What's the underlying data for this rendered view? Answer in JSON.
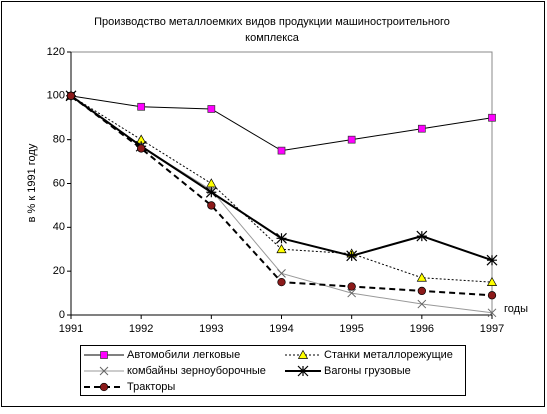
{
  "chart_data": {
    "type": "line",
    "title": [
      "Производство металлоемких видов продукции машиностроительного",
      "комплекса"
    ],
    "y_label": "в % к 1991 году",
    "x_label": "годы",
    "x": [
      1991,
      1992,
      1993,
      1994,
      1995,
      1996,
      1997
    ],
    "xlim": [
      1991,
      1997
    ],
    "xticks": [
      1991,
      1992,
      1993,
      1994,
      1995,
      1996,
      1997
    ],
    "ylim": [
      0,
      120
    ],
    "yticks": [
      0,
      20,
      40,
      60,
      80,
      100,
      120
    ],
    "grid": false,
    "series": [
      {
        "name": "Автомобили легковые",
        "color": "#000000",
        "marker": "square",
        "marker_color": "#ff00ff",
        "dash": "none",
        "line_width": 1,
        "values": [
          100,
          95,
          94,
          75,
          80,
          85,
          90
        ]
      },
      {
        "name": "Станки металлорежущие",
        "color": "#000000",
        "marker": "triangle",
        "marker_color": "#ffff00",
        "dash": "2,2",
        "line_width": 1,
        "values": [
          100,
          80,
          60,
          30,
          28,
          17,
          15
        ]
      },
      {
        "name": "комбайны зерноуборочные",
        "color": "#999999",
        "marker": "x",
        "marker_color": "#666666",
        "dash": "none",
        "line_width": 1,
        "values": [
          100,
          77,
          57,
          19,
          10,
          5,
          1
        ]
      },
      {
        "name": "Вагоны грузовые",
        "color": "#000000",
        "marker": "star",
        "marker_color": "#000000",
        "dash": "none",
        "line_width": 2,
        "values": [
          100,
          77,
          56,
          35,
          27,
          36,
          25
        ]
      },
      {
        "name": "Тракторы",
        "color": "#000000",
        "marker": "circle",
        "marker_color": "#8b1a1a",
        "dash": "6,4",
        "line_width": 2,
        "values": [
          100,
          76,
          50,
          15,
          13,
          11,
          9
        ]
      }
    ]
  }
}
